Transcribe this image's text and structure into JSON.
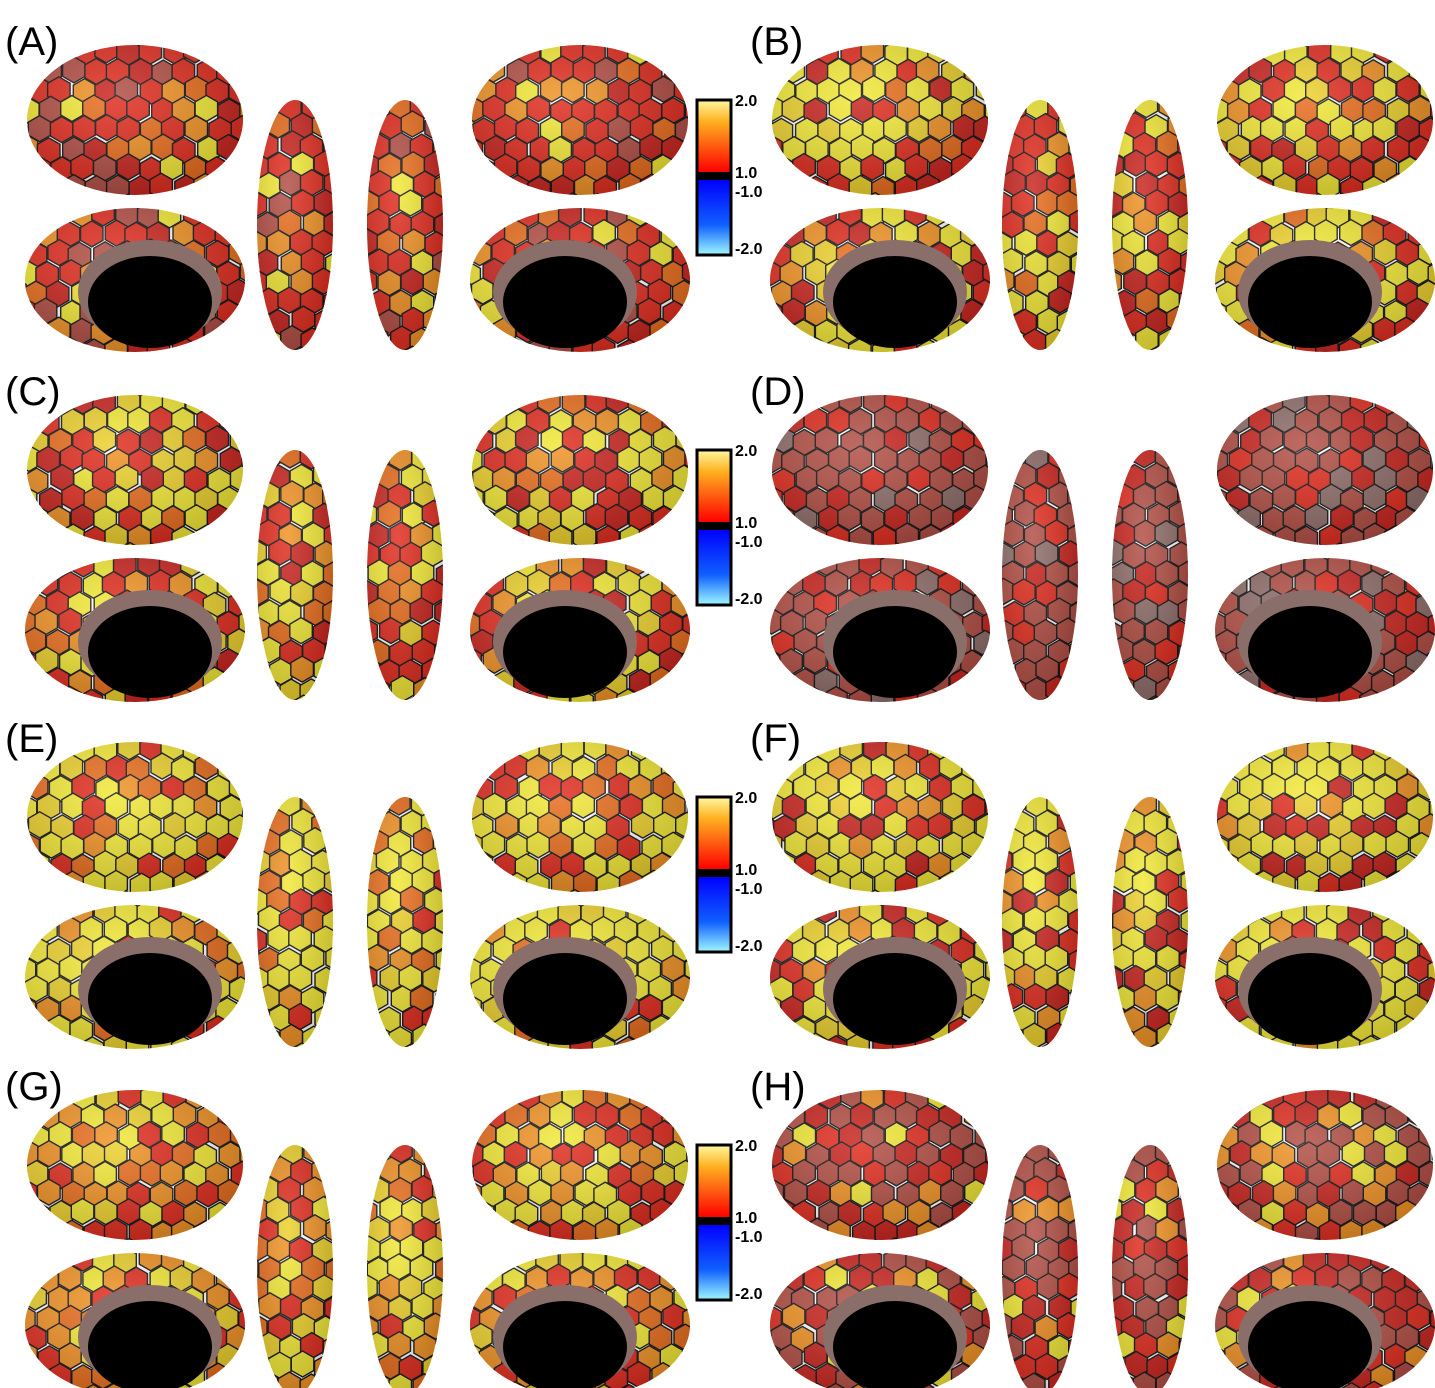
{
  "panels": [
    {
      "label": "(A)"
    },
    {
      "label": "(B)"
    },
    {
      "label": "(C)"
    },
    {
      "label": "(D)"
    },
    {
      "label": "(E)"
    },
    {
      "label": "(F)"
    },
    {
      "label": "(G)"
    },
    {
      "label": "(H)"
    }
  ],
  "colorbars": [
    {
      "ticks": [
        "2.0",
        "1.0",
        "-1.0",
        "-2.0"
      ]
    },
    {
      "ticks": [
        "2.0",
        "1.0",
        "-1.0",
        "-2.0"
      ]
    },
    {
      "ticks": [
        "2.0",
        "1.0",
        "-1.0",
        "-2.0"
      ]
    },
    {
      "ticks": [
        "2.0",
        "1.0",
        "-1.0",
        "-2.0"
      ]
    }
  ]
}
